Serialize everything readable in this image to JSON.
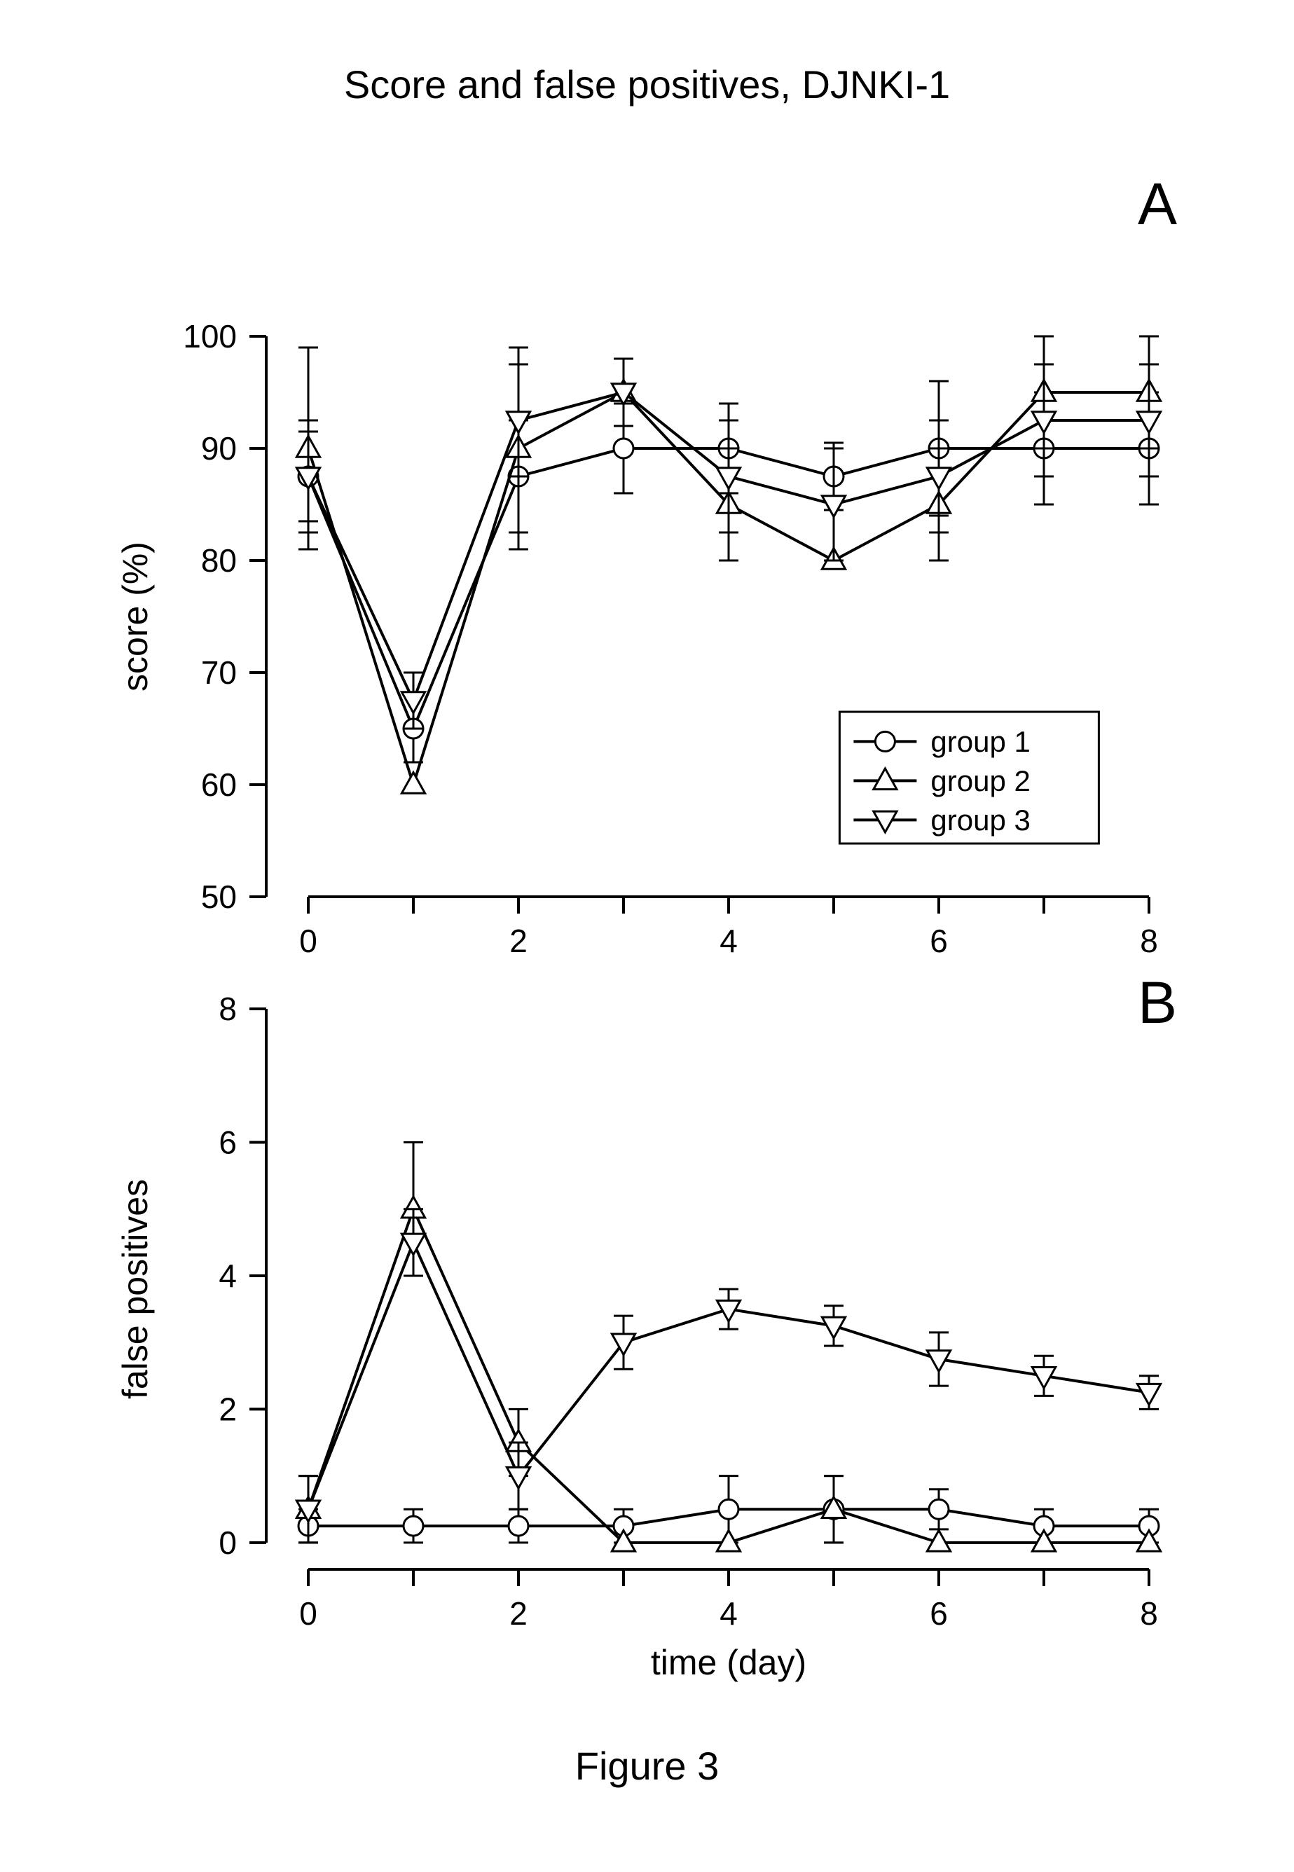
{
  "figure": {
    "main_title": "Score and false positives, DJNKI-1",
    "caption": "Figure 3",
    "title_fontsize": 56,
    "caption_fontsize": 56,
    "background_color": "#ffffff",
    "stroke_color": "#000000",
    "line_width": 4,
    "tick_width": 4,
    "tick_length": 24,
    "marker_size": 14,
    "marker_fill": "#ffffff",
    "axis_fontsize": 50,
    "tick_fontsize": 46,
    "panel_label_fontsize": 84,
    "legend_fontsize": 42,
    "xlabel": "time (day)",
    "x_ticks": [
      0,
      1,
      2,
      3,
      4,
      5,
      6,
      7,
      8
    ],
    "x_tick_labels": [
      "0",
      "",
      "2",
      "",
      "4",
      "",
      "6",
      "",
      "8"
    ],
    "xlim": [
      -0.4,
      8.4
    ],
    "panel_a": {
      "label": "A",
      "ylabel": "score (%)",
      "ylim": [
        50,
        100
      ],
      "y_ticks": [
        50,
        60,
        70,
        80,
        90,
        100
      ],
      "legend": {
        "items": [
          "group 1",
          "group 2",
          "group 3"
        ],
        "markers": [
          "circle",
          "triangle-up",
          "triangle-down"
        ]
      },
      "series": {
        "group1": {
          "marker": "circle",
          "x": [
            0,
            1,
            2,
            3,
            4,
            5,
            6,
            7,
            8
          ],
          "y": [
            87.5,
            65,
            87.5,
            90,
            90,
            87.5,
            90,
            90,
            90
          ],
          "err": [
            4,
            3,
            5,
            4,
            4,
            3,
            6,
            5,
            5
          ]
        },
        "group2": {
          "marker": "triangle-up",
          "x": [
            0,
            1,
            2,
            3,
            4,
            5,
            6,
            7,
            8
          ],
          "y": [
            90,
            60,
            90,
            95,
            85,
            80,
            85,
            95,
            95
          ],
          "err": [
            9,
            0,
            9,
            3,
            5,
            0,
            5,
            5,
            5
          ]
        },
        "group3": {
          "marker": "triangle-down",
          "x": [
            0,
            1,
            2,
            3,
            4,
            5,
            6,
            7,
            8
          ],
          "y": [
            87.5,
            67.5,
            92.5,
            95,
            87.5,
            85,
            87.5,
            92.5,
            92.5
          ],
          "err": [
            5,
            2.5,
            5,
            3,
            5,
            5,
            5,
            5,
            5
          ]
        }
      }
    },
    "panel_b": {
      "label": "B",
      "ylabel": "false positives",
      "ylim": [
        -0.4,
        8
      ],
      "y_ticks": [
        0,
        2,
        4,
        6,
        8
      ],
      "series": {
        "group1": {
          "marker": "circle",
          "x": [
            0,
            1,
            2,
            3,
            4,
            5,
            6,
            7,
            8
          ],
          "y": [
            0.25,
            0.25,
            0.25,
            0.25,
            0.5,
            0.5,
            0.5,
            0.25,
            0.25
          ],
          "err": [
            0.25,
            0.25,
            0.25,
            0.25,
            0.5,
            0.5,
            0.3,
            0.25,
            0.25
          ]
        },
        "group2": {
          "marker": "triangle-up",
          "x": [
            0,
            1,
            2,
            3,
            4,
            5,
            6,
            7,
            8
          ],
          "y": [
            0.5,
            5,
            1.5,
            0,
            0,
            0.5,
            0,
            0,
            0
          ],
          "err": [
            0.5,
            1,
            0.5,
            0,
            0,
            0.5,
            0,
            0,
            0
          ]
        },
        "group3": {
          "marker": "triangle-down",
          "x": [
            0,
            1,
            2,
            3,
            4,
            5,
            6,
            7,
            8
          ],
          "y": [
            0.5,
            4.5,
            1,
            3,
            3.5,
            3.25,
            2.75,
            2.5,
            2.25
          ],
          "err": [
            0.5,
            0.5,
            0.5,
            0.4,
            0.3,
            0.3,
            0.4,
            0.3,
            0.25
          ]
        }
      }
    }
  }
}
